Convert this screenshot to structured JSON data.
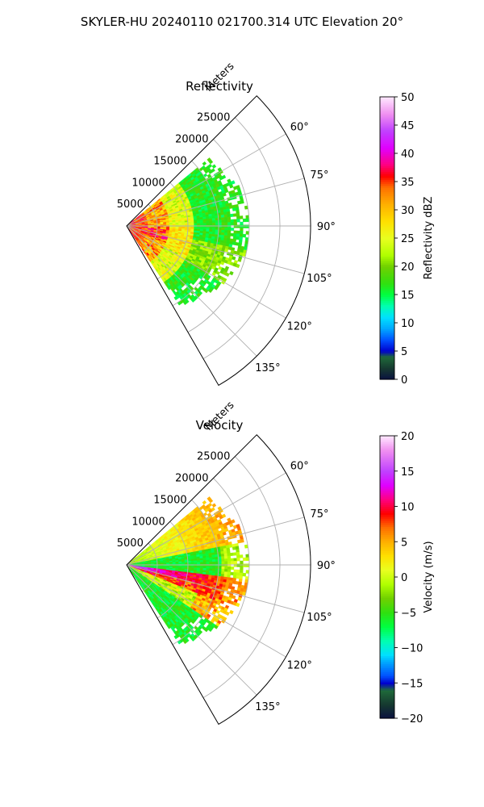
{
  "figure": {
    "suptitle": "SKYLER-HU  20240110  021700.314 UTC Elevation 20°"
  },
  "chart_data": [
    {
      "type": "heatmap",
      "projection": "polar-sector",
      "title": "Reflectivity",
      "range_label": "Meters",
      "range_ticks": [
        5000,
        10000,
        15000,
        20000,
        25000
      ],
      "range_tick_labels": [
        "5000",
        "10000",
        "15000",
        "20000",
        "25000"
      ],
      "rlim": [
        0,
        30000
      ],
      "data_max_range_m": 20000,
      "azimuth_range_deg": [
        45,
        150
      ],
      "azimuth_ticks_deg": [
        60,
        75,
        90,
        105,
        120,
        135
      ],
      "azimuth_tick_labels": [
        "60°",
        "75°",
        "90°",
        "105°",
        "120°",
        "135°"
      ],
      "grid": true,
      "field": "reflectivity",
      "colorbar": {
        "label": "Reflectivity dBZ",
        "vmin": 0,
        "vmax": 50,
        "ticks": [
          0,
          5,
          10,
          15,
          20,
          25,
          30,
          35,
          40,
          45,
          50
        ],
        "tick_labels": [
          "0",
          "5",
          "10",
          "15",
          "20",
          "25",
          "30",
          "35",
          "40",
          "45",
          "50"
        ],
        "stops": [
          {
            "v": 0,
            "c": "#0a1040"
          },
          {
            "v": 2,
            "c": "#163a30"
          },
          {
            "v": 4,
            "c": "#1f6a3a"
          },
          {
            "v": 5,
            "c": "#0000cc"
          },
          {
            "v": 7,
            "c": "#0050ff"
          },
          {
            "v": 9,
            "c": "#00a8ff"
          },
          {
            "v": 11,
            "c": "#00e0ff"
          },
          {
            "v": 13,
            "c": "#00ffb0"
          },
          {
            "v": 15,
            "c": "#00ff40"
          },
          {
            "v": 17,
            "c": "#30e010"
          },
          {
            "v": 20,
            "c": "#70d000"
          },
          {
            "v": 22,
            "c": "#b0ff00"
          },
          {
            "v": 25,
            "c": "#e8ff20"
          },
          {
            "v": 28,
            "c": "#ffe000"
          },
          {
            "v": 31,
            "c": "#ffb000"
          },
          {
            "v": 34,
            "c": "#ff7000"
          },
          {
            "v": 36,
            "c": "#ff0000"
          },
          {
            "v": 38,
            "c": "#ff0080"
          },
          {
            "v": 41,
            "c": "#e000ff"
          },
          {
            "v": 44,
            "c": "#c040ff"
          },
          {
            "v": 47,
            "c": "#f090f0"
          },
          {
            "v": 50,
            "c": "#ffe8ff"
          }
        ]
      }
    },
    {
      "type": "heatmap",
      "projection": "polar-sector",
      "title": "Velocity",
      "range_label": "Meters",
      "range_ticks": [
        5000,
        10000,
        15000,
        20000,
        25000
      ],
      "range_tick_labels": [
        "5000",
        "10000",
        "15000",
        "20000",
        "25000"
      ],
      "rlim": [
        0,
        30000
      ],
      "data_max_range_m": 20000,
      "azimuth_range_deg": [
        45,
        150
      ],
      "azimuth_ticks_deg": [
        60,
        75,
        90,
        105,
        120,
        135
      ],
      "azimuth_tick_labels": [
        "60°",
        "75°",
        "90°",
        "105°",
        "120°",
        "135°"
      ],
      "grid": true,
      "field": "velocity",
      "colorbar": {
        "label": "Velocity (m/s)",
        "vmin": -20,
        "vmax": 20,
        "ticks": [
          -20,
          -15,
          -10,
          -5,
          0,
          5,
          10,
          15,
          20
        ],
        "tick_labels": [
          "−20",
          "−15",
          "−10",
          "−5",
          "0",
          "5",
          "10",
          "15",
          "20"
        ],
        "stops": [
          {
            "v": -20,
            "c": "#0a1040"
          },
          {
            "v": -18,
            "c": "#163a30"
          },
          {
            "v": -16,
            "c": "#1f6a3a"
          },
          {
            "v": -15,
            "c": "#0000cc"
          },
          {
            "v": -14,
            "c": "#0050ff"
          },
          {
            "v": -12,
            "c": "#00a8ff"
          },
          {
            "v": -11,
            "c": "#00e0ff"
          },
          {
            "v": -9,
            "c": "#00ffb0"
          },
          {
            "v": -7,
            "c": "#00ff40"
          },
          {
            "v": -5,
            "c": "#30e010"
          },
          {
            "v": -3,
            "c": "#70d000"
          },
          {
            "v": -1,
            "c": "#b0ff00"
          },
          {
            "v": 1,
            "c": "#e8ff20"
          },
          {
            "v": 3,
            "c": "#ffe000"
          },
          {
            "v": 5,
            "c": "#ffb000"
          },
          {
            "v": 7,
            "c": "#ff7000"
          },
          {
            "v": 9,
            "c": "#ff0000"
          },
          {
            "v": 11,
            "c": "#ff0080"
          },
          {
            "v": 13,
            "c": "#e000ff"
          },
          {
            "v": 15,
            "c": "#c040ff"
          },
          {
            "v": 18,
            "c": "#f090f0"
          },
          {
            "v": 20,
            "c": "#ffe8ff"
          }
        ]
      }
    }
  ]
}
